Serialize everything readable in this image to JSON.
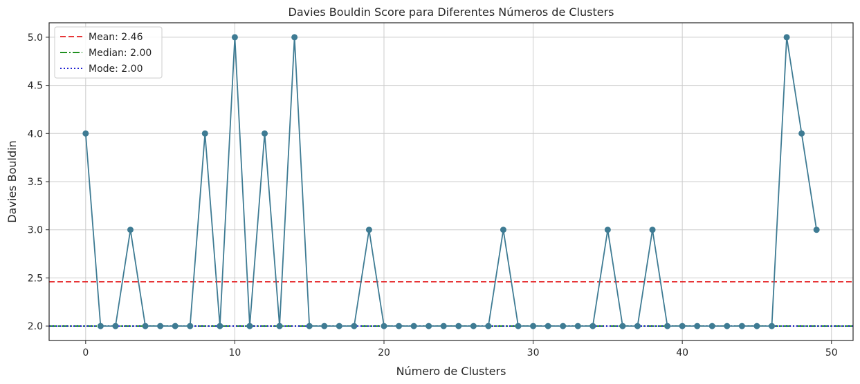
{
  "chart_data": {
    "type": "line",
    "title": "Davies Bouldin Score para Diferentes Números de Clusters",
    "xlabel": "Número de Clusters",
    "ylabel": "Davies Bouldin",
    "xlim": [
      -2.45,
      51.45
    ],
    "ylim": [
      1.85,
      5.15
    ],
    "xticks": [
      0,
      10,
      20,
      30,
      40,
      50
    ],
    "yticks": [
      2.0,
      2.5,
      3.0,
      3.5,
      4.0,
      4.5,
      5.0
    ],
    "xtick_labels": [
      "0",
      "10",
      "20",
      "30",
      "40",
      "50"
    ],
    "ytick_labels": [
      "2.0",
      "2.5",
      "3.0",
      "3.5",
      "4.0",
      "4.5",
      "5.0"
    ],
    "grid": true,
    "legend_position": "top-left",
    "series": [
      {
        "color": "#3e7b93",
        "marker": "circle",
        "x": [
          0,
          1,
          2,
          3,
          4,
          5,
          6,
          7,
          8,
          9,
          10,
          11,
          12,
          13,
          14,
          15,
          16,
          17,
          18,
          19,
          20,
          21,
          22,
          23,
          24,
          25,
          26,
          27,
          28,
          29,
          30,
          31,
          32,
          33,
          34,
          35,
          36,
          37,
          38,
          39,
          40,
          41,
          42,
          43,
          44,
          45,
          46,
          47,
          48,
          49
        ],
        "values": [
          4,
          2,
          2,
          3,
          2,
          2,
          2,
          2,
          4,
          2,
          5,
          2,
          4,
          2,
          5,
          2,
          2,
          2,
          2,
          3,
          2,
          2,
          2,
          2,
          2,
          2,
          2,
          2,
          3,
          2,
          2,
          2,
          2,
          2,
          2,
          3,
          2,
          2,
          3,
          2,
          2,
          2,
          2,
          2,
          2,
          2,
          2,
          5,
          4,
          3
        ]
      }
    ],
    "reference_lines": [
      {
        "name": "Mean: 2.46",
        "value": 2.46,
        "color": "#e41a1c",
        "style": "dashed"
      },
      {
        "name": "Median: 2.00",
        "value": 2.0,
        "color": "#008000",
        "style": "dashdot"
      },
      {
        "name": "Mode: 2.00",
        "value": 2.0,
        "color": "#0000cc",
        "style": "dotted"
      }
    ]
  }
}
